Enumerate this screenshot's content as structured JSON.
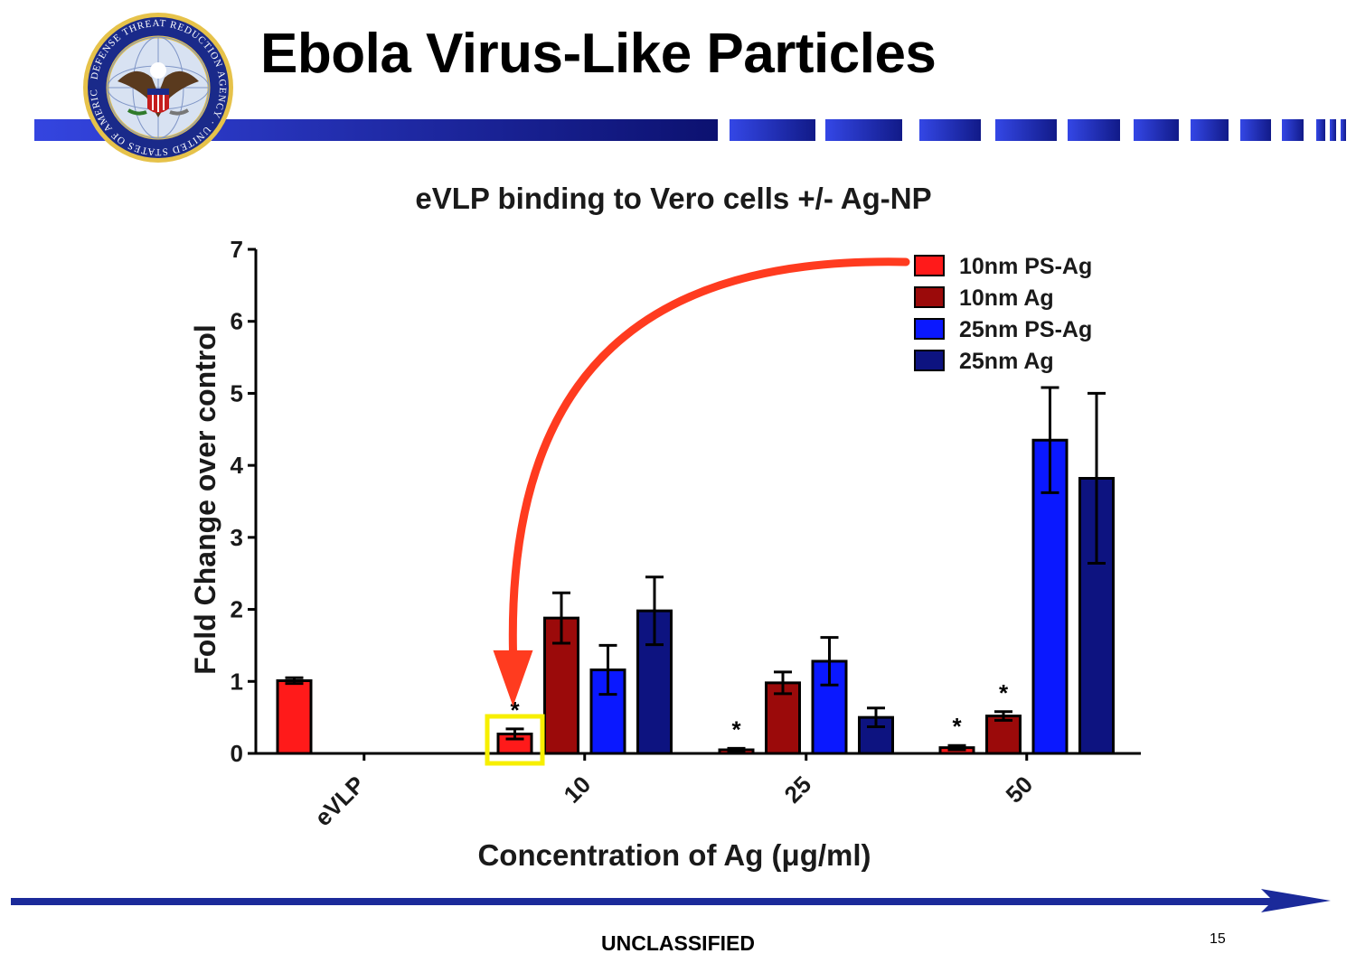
{
  "slide": {
    "title": "Ebola Virus-Like Particles",
    "footer": "UNCLASSIFIED",
    "page_number": "15",
    "logo": {
      "icon": "dtra-seal-icon",
      "text": "DEFENSE THREAT REDUCTION AGENCY · UNITED STATES OF AMERICA"
    },
    "colors": {
      "banner_blue": "#2b3fd6",
      "banner_dark": "#0c1170",
      "arrow_blue": "#1b2a9a",
      "annotation_arrow": "#ff3b1f",
      "highlight_box": "#f7ef00"
    }
  },
  "chart_data": {
    "type": "bar",
    "title": "eVLP binding to Vero cells +/- Ag-NP",
    "xlabel": "Concentration of Ag (μg/ml)",
    "ylabel": "Fold Change over control",
    "ylim": [
      0,
      7
    ],
    "yticks": [
      "0",
      "1",
      "2",
      "3",
      "4",
      "5",
      "6",
      "7"
    ],
    "categories": [
      "eVLP",
      "10",
      "25",
      "50"
    ],
    "legend_position": "top-right",
    "series": [
      {
        "name": "10nm PS-Ag",
        "color": "#ff1a1a",
        "values": [
          1.01,
          0.27,
          0.05,
          0.08
        ],
        "errors": [
          0.04,
          0.07,
          0.02,
          0.03
        ],
        "significant": [
          false,
          true,
          true,
          true
        ]
      },
      {
        "name": "10nm Ag",
        "color": "#9b0a0a",
        "values": [
          null,
          1.88,
          0.98,
          0.52
        ],
        "errors": [
          null,
          0.35,
          0.15,
          0.06
        ],
        "significant": [
          false,
          false,
          false,
          true
        ]
      },
      {
        "name": "25nm PS-Ag",
        "color": "#0a18ff",
        "values": [
          null,
          1.16,
          1.28,
          4.35
        ],
        "errors": [
          null,
          0.34,
          0.33,
          0.73
        ],
        "significant": [
          false,
          false,
          false,
          false
        ]
      },
      {
        "name": "25nm Ag",
        "color": "#0d1380",
        "values": [
          null,
          1.98,
          0.5,
          3.82
        ],
        "errors": [
          null,
          0.47,
          0.13,
          1.18
        ],
        "significant": [
          false,
          false,
          false,
          false
        ]
      }
    ],
    "significance_marker": "*",
    "annotation": {
      "highlight": {
        "category": "10",
        "series": "10nm PS-Ag"
      }
    }
  }
}
